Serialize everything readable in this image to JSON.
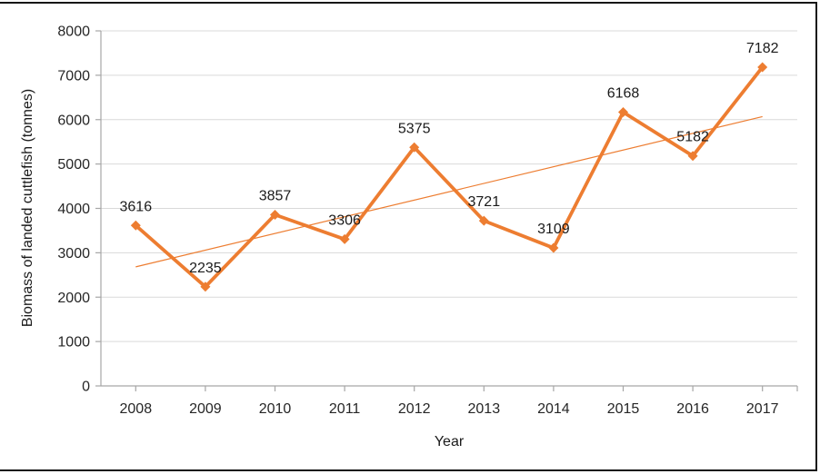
{
  "chart_data": {
    "type": "line",
    "x": [
      "2008",
      "2009",
      "2010",
      "2011",
      "2012",
      "2013",
      "2014",
      "2015",
      "2016",
      "2017"
    ],
    "series": [
      {
        "name": "Biomass of landed cuttlefish",
        "values": [
          3616,
          2235,
          3857,
          3306,
          5375,
          3721,
          3109,
          6168,
          5182,
          7182
        ],
        "color": "#ED7D31",
        "marker": "diamond",
        "line_width": 3.8,
        "data_labels_shown": true
      }
    ],
    "trendline": {
      "type": "linear",
      "start_value": 2683,
      "end_value": 6067,
      "color": "#ED7D31",
      "width": 1.2
    },
    "xlabel": "Year",
    "ylabel": "Biomass of landed cuttlefish (tonnes)",
    "ylim": [
      0,
      8000
    ],
    "y_ticks": [
      0,
      1000,
      2000,
      3000,
      4000,
      5000,
      6000,
      7000,
      8000
    ],
    "grid": true,
    "legend": "none"
  },
  "style": {
    "gridline_color": "#D9D9D9",
    "axis_color": "#A6A6A6",
    "tick_label_color": "#262626",
    "data_label_color": "#1a1a1a",
    "frame_border_color": "#161616",
    "background": "#ffffff"
  }
}
